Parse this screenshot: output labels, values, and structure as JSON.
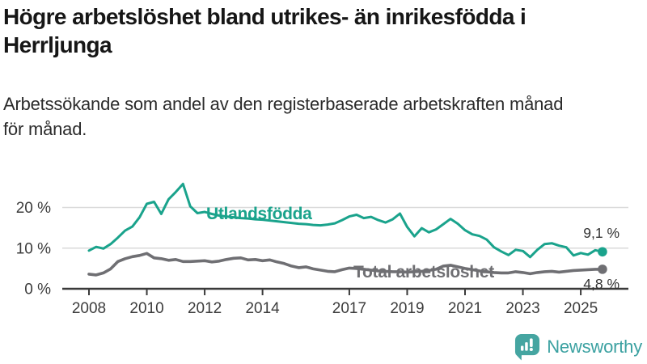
{
  "title": "Högre arbetslöshet bland utrikes- än inrikesfödda i\nHerrljunga",
  "subtitle": "Arbetssökande som andel av den registerbaserade arbetskraften månad\nför månad.",
  "logo": {
    "text": "Newsworthy",
    "icon": "newsworthy-bubble-chart-icon",
    "color": "#3ba1a1"
  },
  "colors": {
    "foreign_series": "#1aa38c",
    "total_series": "#6f6f73",
    "axis_line": "#3a3a3a",
    "grid_line": "#dadada",
    "axis_text": "#3c3c3c",
    "end_label_text": "#333333"
  },
  "chart_data": {
    "type": "line",
    "title": "Högre arbetslöshet bland utrikes- än inrikesfödda i Herrljunga",
    "subtitle": "Arbetssökande som andel av den registerbaserade arbetskraften månad för månad.",
    "xlabel": "",
    "ylabel": "",
    "x_unit": "year",
    "y_unit": "%",
    "xlim": [
      2007.1,
      2026.5
    ],
    "ylim": [
      0,
      28
    ],
    "grid": "horizontal",
    "x_ticks": [
      2008,
      2010,
      2012,
      2014,
      2017,
      2019,
      2021,
      2023,
      2025
    ],
    "y_ticks": [
      {
        "value": 0,
        "label": "0 %"
      },
      {
        "value": 10,
        "label": "10 %"
      },
      {
        "value": 20,
        "label": "20 %"
      }
    ],
    "x": [
      2008,
      2008.25,
      2008.5,
      2008.75,
      2009,
      2009.25,
      2009.5,
      2009.75,
      2010,
      2010.25,
      2010.5,
      2010.75,
      2011,
      2011.25,
      2011.5,
      2011.75,
      2012,
      2012.25,
      2012.5,
      2012.75,
      2013,
      2013.25,
      2013.5,
      2013.75,
      2014,
      2014.25,
      2014.5,
      2014.75,
      2015,
      2015.25,
      2015.5,
      2015.75,
      2016,
      2016.25,
      2016.5,
      2016.75,
      2017,
      2017.25,
      2017.5,
      2017.75,
      2018,
      2018.25,
      2018.5,
      2018.75,
      2019,
      2019.25,
      2019.5,
      2019.75,
      2020,
      2020.25,
      2020.5,
      2020.75,
      2021,
      2021.25,
      2021.5,
      2021.75,
      2022,
      2022.25,
      2022.5,
      2022.75,
      2023,
      2023.25,
      2023.5,
      2023.75,
      2024,
      2024.25,
      2024.5,
      2024.75,
      2025,
      2025.25,
      2025.5,
      2025.75
    ],
    "series": [
      {
        "name": "Utlandsfödda",
        "color": "#1aa38c",
        "end_value": 9.1,
        "end_label": "9,1 %",
        "values": [
          9.4,
          10.3,
          9.9,
          11.0,
          12.6,
          14.3,
          15.3,
          17.6,
          20.9,
          21.4,
          18.4,
          22.0,
          23.8,
          25.8,
          20.3,
          18.6,
          18.9,
          18.4,
          18.0,
          17.8,
          17.6,
          17.4,
          17.3,
          17.1,
          17.0,
          16.8,
          16.6,
          16.4,
          16.2,
          16.0,
          15.9,
          15.7,
          15.6,
          15.8,
          16.1,
          16.9,
          17.8,
          18.2,
          17.4,
          17.7,
          16.9,
          16.3,
          17.1,
          18.5,
          15.2,
          12.9,
          14.9,
          13.9,
          14.6,
          15.9,
          17.2,
          16.0,
          14.4,
          13.4,
          13.0,
          12.1,
          10.2,
          9.2,
          8.3,
          9.6,
          9.3,
          7.8,
          9.6,
          11.0,
          11.2,
          10.6,
          10.2,
          8.2,
          8.8,
          8.4,
          9.5,
          9.1
        ]
      },
      {
        "name": "Total arbetslöshet",
        "color": "#6f6f73",
        "end_value": 4.8,
        "end_label": "4,8 %",
        "values": [
          3.6,
          3.4,
          3.9,
          4.9,
          6.7,
          7.4,
          7.9,
          8.2,
          8.7,
          7.6,
          7.4,
          7.0,
          7.2,
          6.7,
          6.7,
          6.8,
          6.9,
          6.6,
          6.8,
          7.2,
          7.5,
          7.6,
          7.1,
          7.2,
          6.9,
          7.1,
          6.6,
          6.2,
          5.6,
          5.2,
          5.4,
          4.9,
          4.6,
          4.3,
          4.2,
          4.7,
          5.1,
          5.0,
          4.8,
          4.6,
          4.4,
          4.3,
          4.2,
          4.2,
          4.1,
          4.2,
          4.3,
          4.5,
          4.8,
          5.6,
          5.8,
          5.4,
          5.0,
          4.7,
          4.4,
          4.2,
          4.0,
          3.9,
          3.9,
          4.2,
          4.0,
          3.7,
          4.0,
          4.2,
          4.3,
          4.1,
          4.3,
          4.5,
          4.6,
          4.7,
          4.8,
          4.8
        ]
      }
    ],
    "legend_position": "inline-labels"
  }
}
